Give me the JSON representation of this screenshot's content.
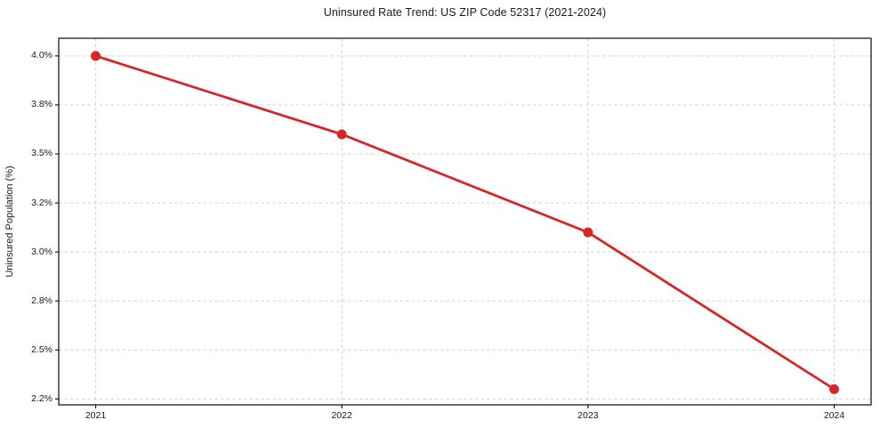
{
  "chart_data": {
    "type": "line",
    "title": "Uninsured Rate Trend: US ZIP Code 52317 (2021-2024)",
    "xlabel": "",
    "ylabel": "Uninsured Population (%)",
    "x": [
      2021,
      2022,
      2023,
      2024
    ],
    "values": [
      4.0,
      3.6,
      3.1,
      2.3
    ],
    "x_ticks": [
      {
        "value": 2021,
        "label": "2021"
      },
      {
        "value": 2022,
        "label": "2022"
      },
      {
        "value": 2023,
        "label": "2023"
      },
      {
        "value": 2024,
        "label": "2024"
      }
    ],
    "y_ticks": [
      {
        "value": 2.25,
        "label": "2.2%"
      },
      {
        "value": 2.5,
        "label": "2.5%"
      },
      {
        "value": 2.75,
        "label": "2.8%"
      },
      {
        "value": 3.0,
        "label": "3.0%"
      },
      {
        "value": 3.25,
        "label": "3.2%"
      },
      {
        "value": 3.5,
        "label": "3.5%"
      },
      {
        "value": 3.75,
        "label": "3.8%"
      },
      {
        "value": 4.0,
        "label": "4.0%"
      }
    ],
    "xlim": [
      2020.85,
      2024.15
    ],
    "ylim": [
      2.22,
      4.09
    ],
    "grid": true,
    "grid_style": "dashed",
    "legend": "none",
    "colors": {
      "line": "#d62728",
      "marker": "#d62728",
      "grid": "#d3d3d3",
      "axis": "#1a1a1a",
      "text": "#1a1a1a",
      "background": "#ffffff"
    }
  }
}
